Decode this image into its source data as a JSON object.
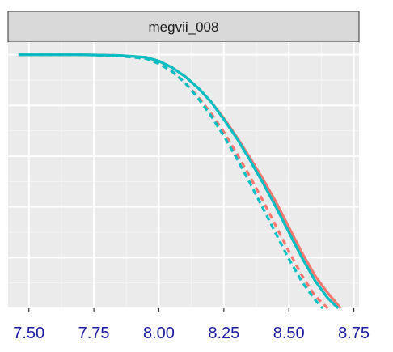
{
  "chart_data": {
    "type": "line",
    "facet_label": "megvii_008",
    "title": "",
    "xlabel": "",
    "ylabel": "",
    "xlim": [
      7.42,
      8.77
    ],
    "ylim": [
      0.0,
      1.05
    ],
    "x_ticks": [
      7.5,
      7.75,
      8.0,
      8.25,
      8.5,
      8.75
    ],
    "x_tick_labels": [
      "7.50",
      "7.75",
      "8.00",
      "8.25",
      "8.50",
      "8.75"
    ],
    "y_ticks": [
      0.0,
      0.2,
      0.4,
      0.6,
      0.8,
      1.0
    ],
    "grid": true,
    "colors": {
      "red": "#F8766D",
      "teal": "#00BFC4",
      "panel_bg": "#EBEBEB",
      "strip_bg": "#D9D9D9"
    },
    "series": [
      {
        "color": "#F8766D",
        "dash": "solid",
        "x": [
          7.46,
          7.7,
          7.85,
          7.95,
          8.0,
          8.05,
          8.1,
          8.15,
          8.2,
          8.25,
          8.3,
          8.35,
          8.4,
          8.45,
          8.5,
          8.55,
          8.6,
          8.65,
          8.7
        ],
        "y": [
          1.0,
          1.0,
          0.997,
          0.99,
          0.975,
          0.95,
          0.915,
          0.87,
          0.815,
          0.75,
          0.675,
          0.595,
          0.51,
          0.42,
          0.32,
          0.22,
          0.13,
          0.06,
          0.0
        ]
      },
      {
        "color": "#00BFC4",
        "dash": "solid",
        "x": [
          7.46,
          7.7,
          7.85,
          7.95,
          8.0,
          8.05,
          8.1,
          8.15,
          8.2,
          8.25,
          8.3,
          8.35,
          8.4,
          8.45,
          8.5,
          8.55,
          8.6,
          8.65,
          8.69
        ],
        "y": [
          1.0,
          1.0,
          0.997,
          0.99,
          0.975,
          0.95,
          0.915,
          0.87,
          0.815,
          0.745,
          0.67,
          0.585,
          0.495,
          0.4,
          0.3,
          0.2,
          0.11,
          0.04,
          0.0
        ]
      },
      {
        "color": "#F8766D",
        "dash": "dashed",
        "x": [
          7.46,
          7.7,
          7.85,
          7.95,
          8.0,
          8.05,
          8.1,
          8.15,
          8.2,
          8.25,
          8.3,
          8.35,
          8.4,
          8.45,
          8.5,
          8.55,
          8.6,
          8.65
        ],
        "y": [
          1.0,
          1.0,
          0.995,
          0.985,
          0.965,
          0.935,
          0.89,
          0.835,
          0.77,
          0.695,
          0.61,
          0.52,
          0.425,
          0.325,
          0.225,
          0.13,
          0.05,
          0.0
        ]
      },
      {
        "color": "#00BFC4",
        "dash": "dashed",
        "x": [
          7.46,
          7.7,
          7.85,
          7.95,
          8.0,
          8.05,
          8.1,
          8.15,
          8.2,
          8.25,
          8.3,
          8.35,
          8.4,
          8.45,
          8.5,
          8.55,
          8.6,
          8.63
        ],
        "y": [
          1.0,
          1.0,
          0.995,
          0.985,
          0.965,
          0.935,
          0.89,
          0.83,
          0.76,
          0.68,
          0.59,
          0.495,
          0.395,
          0.295,
          0.195,
          0.105,
          0.035,
          0.0
        ]
      }
    ]
  }
}
